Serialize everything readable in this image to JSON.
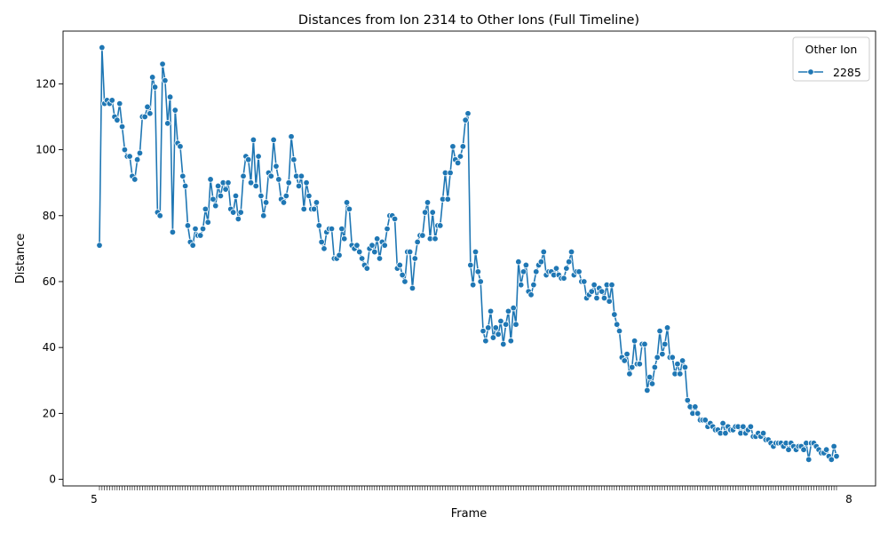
{
  "chart_data": {
    "type": "line",
    "title": "Distances from Ion 2314 to Other Ions (Full Timeline)",
    "xlabel": "Frame",
    "ylabel": "Distance",
    "ylim": [
      -2,
      136
    ],
    "yticks": [
      0,
      20,
      40,
      60,
      80,
      100,
      120
    ],
    "x_tick_first": "5",
    "x_tick_last": "8",
    "legend": {
      "title": "Other Ion",
      "placement": "top-right"
    },
    "grid": false,
    "series": [
      {
        "name": "2285",
        "color": "#1f77b4",
        "values": [
          71,
          131,
          114,
          115,
          114,
          115,
          110,
          109,
          114,
          107,
          100,
          98,
          98,
          92,
          91,
          97,
          99,
          110,
          110,
          113,
          111,
          122,
          119,
          81,
          80,
          126,
          121,
          108,
          116,
          75,
          112,
          102,
          101,
          92,
          89,
          77,
          72,
          71,
          76,
          74,
          74,
          76,
          82,
          78,
          91,
          85,
          83,
          89,
          86,
          90,
          88,
          90,
          82,
          81,
          86,
          79,
          81,
          92,
          98,
          97,
          90,
          103,
          89,
          98,
          86,
          80,
          84,
          93,
          92,
          103,
          95,
          91,
          85,
          84,
          86,
          90,
          104,
          97,
          92,
          89,
          92,
          82,
          90,
          86,
          82,
          82,
          84,
          77,
          72,
          70,
          75,
          76,
          76,
          67,
          67,
          68,
          76,
          73,
          84,
          82,
          71,
          70,
          71,
          69,
          67,
          65,
          64,
          70,
          71,
          69,
          73,
          67,
          72,
          71,
          76,
          80,
          80,
          79,
          64,
          65,
          62,
          60,
          69,
          69,
          58,
          67,
          72,
          74,
          74,
          81,
          84,
          73,
          81,
          73,
          77,
          77,
          85,
          93,
          85,
          93,
          101,
          97,
          96,
          98,
          101,
          109,
          111,
          65,
          59,
          69,
          63,
          60,
          45,
          42,
          46,
          51,
          43,
          46,
          44,
          48,
          41,
          47,
          51,
          42,
          52,
          47,
          66,
          59,
          63,
          65,
          57,
          56,
          59,
          63,
          65,
          66,
          69,
          62,
          63,
          63,
          62,
          64,
          62,
          61,
          61,
          64,
          66,
          69,
          62,
          63,
          63,
          60,
          60,
          55,
          56,
          57,
          59,
          55,
          58,
          57,
          55,
          59,
          54,
          59,
          50,
          47,
          45,
          37,
          36,
          38,
          32,
          34,
          42,
          35,
          35,
          41,
          41,
          27,
          31,
          29,
          34,
          37,
          45,
          38,
          41,
          46,
          37,
          37,
          32,
          35,
          32,
          36,
          34,
          24,
          22,
          20,
          22,
          20,
          18,
          18,
          18,
          16,
          17,
          16,
          15,
          15,
          14,
          17,
          14,
          16,
          15,
          15,
          16,
          16,
          14,
          16,
          14,
          15,
          16,
          13,
          13,
          14,
          13,
          14,
          12,
          12,
          11,
          10,
          11,
          11,
          11,
          10,
          11,
          9,
          11,
          10,
          9,
          10,
          10,
          9,
          11,
          6,
          11,
          11,
          10,
          9,
          8,
          8,
          9,
          7,
          6,
          10,
          7
        ]
      }
    ]
  }
}
